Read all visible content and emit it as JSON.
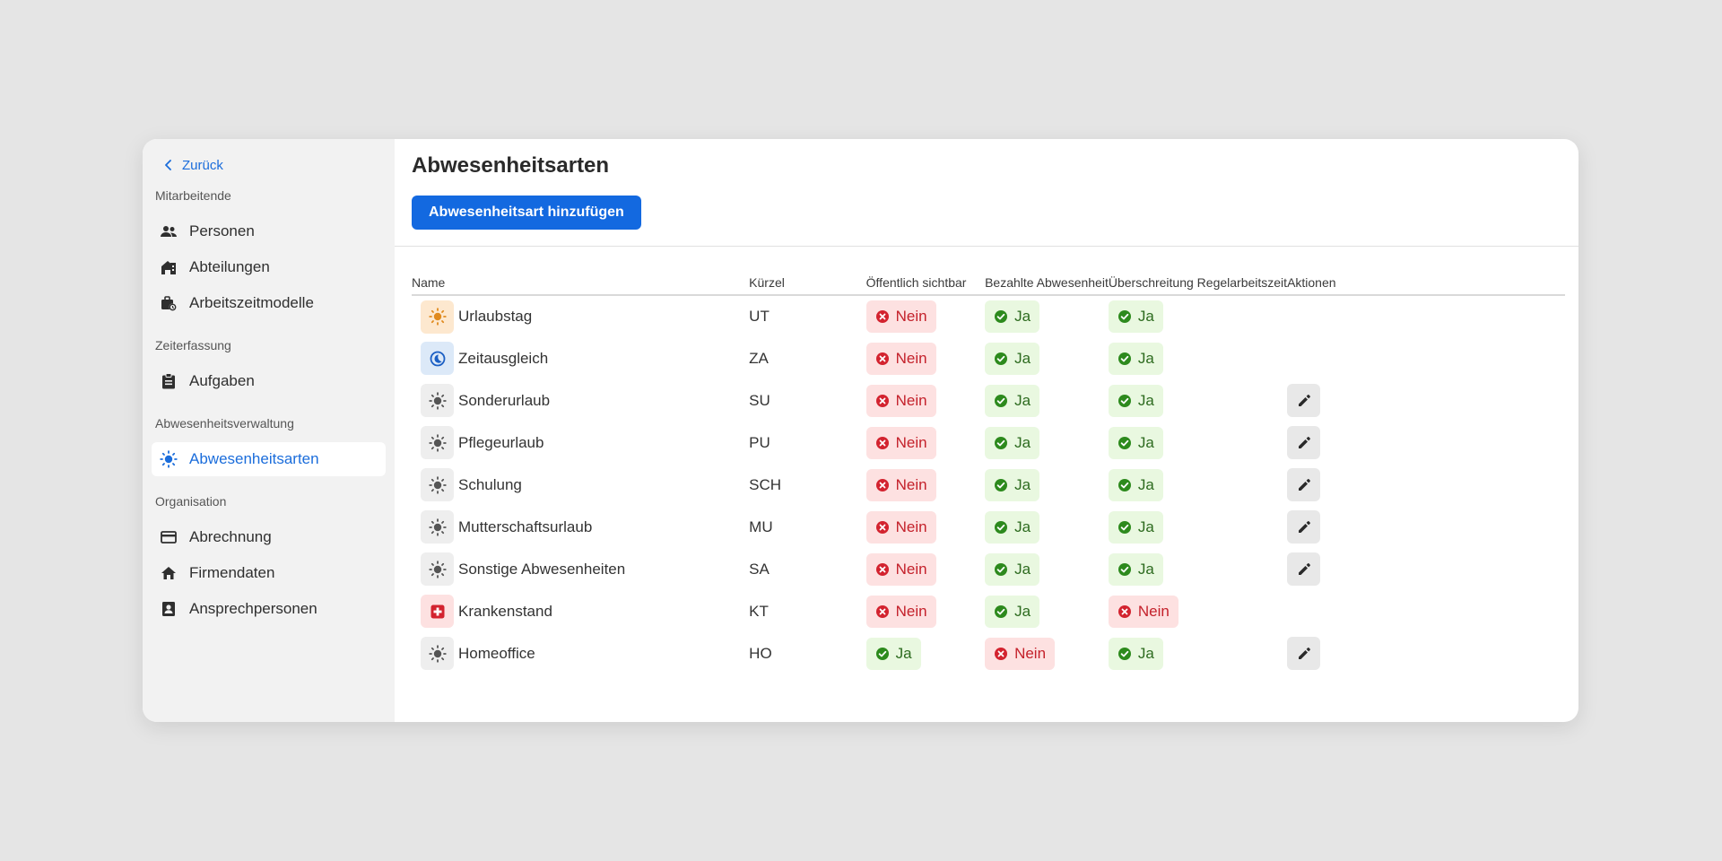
{
  "colors": {
    "accent": "#1369e0",
    "link": "#1b6ddb",
    "yes_bg": "#e9f8e0",
    "yes_text": "#2d6b1f",
    "no_bg": "#fde1e1",
    "no_text": "#c4212b"
  },
  "sidebar": {
    "back_label": "Zurück",
    "groups": [
      {
        "title": "Mitarbeitende",
        "items": [
          {
            "label": "Personen",
            "icon": "people-icon"
          },
          {
            "label": "Abteilungen",
            "icon": "building-icon"
          },
          {
            "label": "Arbeitszeitmodelle",
            "icon": "briefcase-clock-icon"
          }
        ]
      },
      {
        "title": "Zeiterfassung",
        "items": [
          {
            "label": "Aufgaben",
            "icon": "clipboard-icon"
          }
        ]
      },
      {
        "title": "Abwesenheitsverwaltung",
        "items": [
          {
            "label": "Abwesenheitsarten",
            "icon": "sun-icon",
            "active": true
          }
        ]
      },
      {
        "title": "Organisation",
        "items": [
          {
            "label": "Abrechnung",
            "icon": "credit-card-icon"
          },
          {
            "label": "Firmendaten",
            "icon": "home-icon"
          },
          {
            "label": "Ansprechpersonen",
            "icon": "contact-icon"
          }
        ]
      }
    ]
  },
  "main": {
    "title": "Abwesenheitsarten",
    "add_button": "Abwesenheitsart hinzufügen",
    "columns": [
      "Name",
      "Kürzel",
      "Öffentlich sichtbar",
      "Bezahlte Abwesenheit",
      "Überschreitung Regelarbeitszeit",
      "Aktionen"
    ],
    "rows": [
      {
        "name": "Urlaubstag",
        "code": "UT",
        "icon": "sun-icon",
        "icon_bg": "#fde8cf",
        "icon_color": "#e08a1e",
        "public": "Nein",
        "paid": "Ja",
        "overtime": "Ja",
        "editable": false
      },
      {
        "name": "Zeitausgleich",
        "code": "ZA",
        "icon": "moon-icon",
        "icon_bg": "#dce9f8",
        "icon_color": "#1b5fc4",
        "public": "Nein",
        "paid": "Ja",
        "overtime": "Ja",
        "editable": false
      },
      {
        "name": "Sonderurlaub",
        "code": "SU",
        "icon": "sun-icon",
        "icon_bg": "#eeeeee",
        "icon_color": "#555555",
        "public": "Nein",
        "paid": "Ja",
        "overtime": "Ja",
        "editable": true
      },
      {
        "name": "Pflegeurlaub",
        "code": "PU",
        "icon": "sun-icon",
        "icon_bg": "#eeeeee",
        "icon_color": "#555555",
        "public": "Nein",
        "paid": "Ja",
        "overtime": "Ja",
        "editable": true
      },
      {
        "name": "Schulung",
        "code": "SCH",
        "icon": "sun-icon",
        "icon_bg": "#eeeeee",
        "icon_color": "#555555",
        "public": "Nein",
        "paid": "Ja",
        "overtime": "Ja",
        "editable": true
      },
      {
        "name": "Mutterschaftsurlaub",
        "code": "MU",
        "icon": "sun-icon",
        "icon_bg": "#eeeeee",
        "icon_color": "#555555",
        "public": "Nein",
        "paid": "Ja",
        "overtime": "Ja",
        "editable": true
      },
      {
        "name": "Sonstige Abwesenheiten",
        "code": "SA",
        "icon": "sun-icon",
        "icon_bg": "#eeeeee",
        "icon_color": "#555555",
        "public": "Nein",
        "paid": "Ja",
        "overtime": "Ja",
        "editable": true
      },
      {
        "name": "Krankenstand",
        "code": "KT",
        "icon": "medical-cross-icon",
        "icon_bg": "#fde1e1",
        "icon_color": "#d3232f",
        "public": "Nein",
        "paid": "Ja",
        "overtime": "Nein",
        "editable": false
      },
      {
        "name": "Homeoffice",
        "code": "HO",
        "icon": "sun-icon",
        "icon_bg": "#eeeeee",
        "icon_color": "#555555",
        "public": "Ja",
        "paid": "Nein",
        "overtime": "Ja",
        "editable": true
      }
    ]
  }
}
